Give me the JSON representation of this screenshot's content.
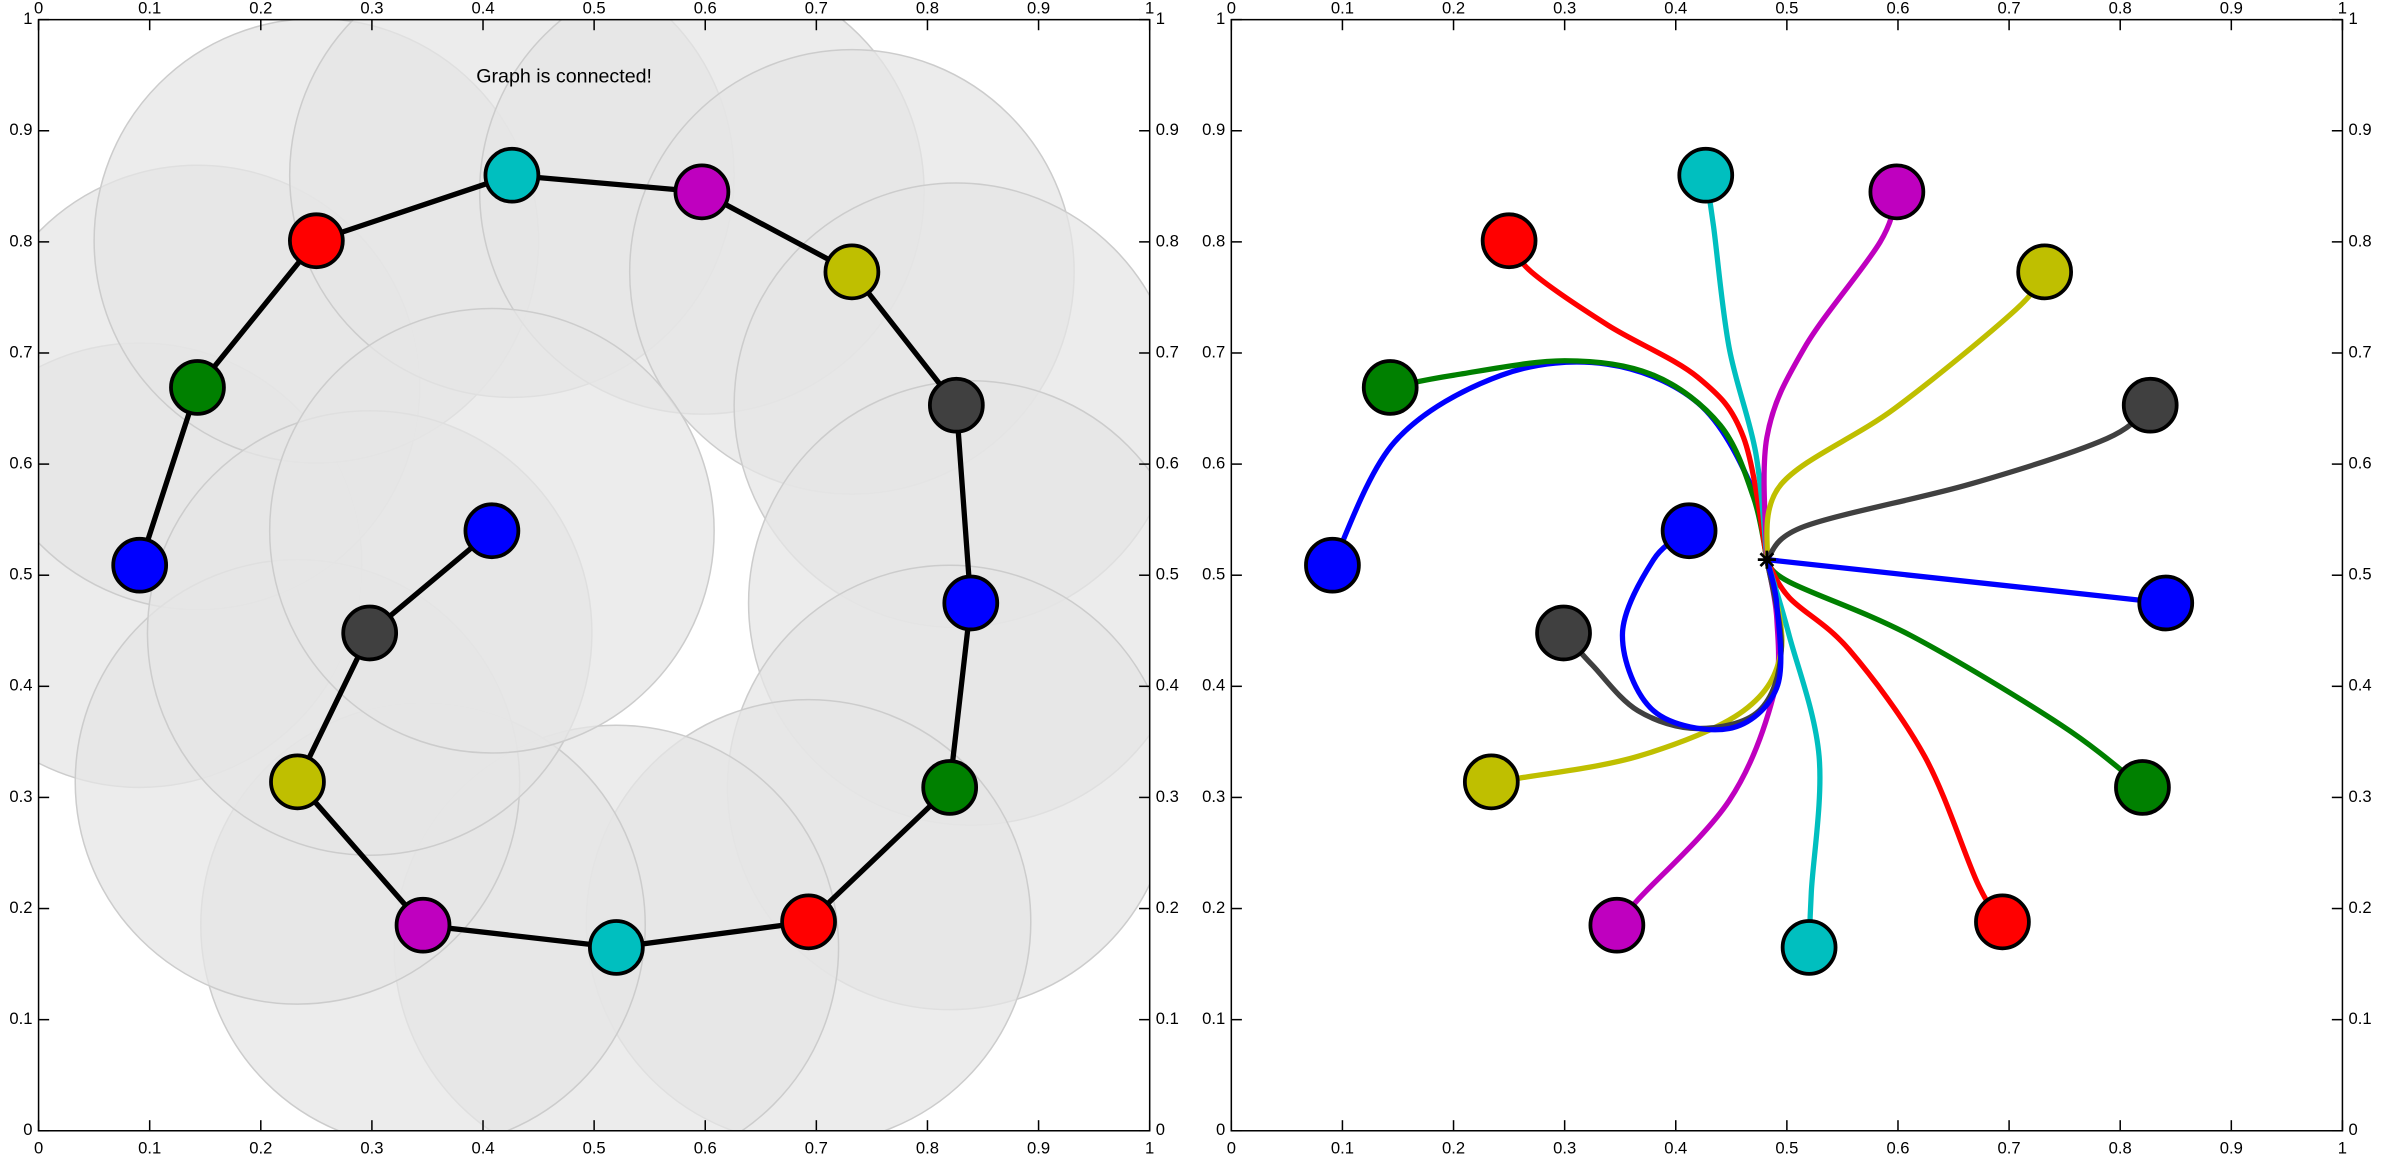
{
  "chart_data": [
    {
      "type": "network",
      "annotation": "Graph is connected!",
      "xlim": [
        0,
        1
      ],
      "ylim": [
        0,
        1
      ],
      "xticks": [
        0,
        0.1,
        0.2,
        0.3,
        0.4,
        0.5,
        0.6,
        0.7,
        0.8,
        0.9,
        1
      ],
      "yticks": [
        0,
        0.1,
        0.2,
        0.3,
        0.4,
        0.5,
        0.6,
        0.7,
        0.8,
        0.9,
        1
      ],
      "range": 0.2,
      "range_color": "#e6e6e6",
      "edge_color": "#000000",
      "x": [
        0.091,
        0.143,
        0.25,
        0.426,
        0.597,
        0.732,
        0.826,
        0.839,
        0.82,
        0.693,
        0.52,
        0.346,
        0.233,
        0.298,
        0.408
      ],
      "y": [
        0.509,
        0.669,
        0.801,
        0.86,
        0.845,
        0.773,
        0.653,
        0.475,
        0.309,
        0.188,
        0.165,
        0.185,
        0.314,
        0.448,
        0.54
      ],
      "colors": [
        "#0000ff",
        "#008000",
        "#ff0000",
        "#00bfbf",
        "#bf00bf",
        "#bfbf00",
        "#404040",
        "#0000ff",
        "#008000",
        "#ff0000",
        "#00bfbf",
        "#bf00bf",
        "#bfbf00",
        "#404040",
        "#0000ff"
      ]
    },
    {
      "type": "trajectories",
      "xlim": [
        0,
        1
      ],
      "ylim": [
        0,
        1
      ],
      "xticks": [
        0,
        0.1,
        0.2,
        0.3,
        0.4,
        0.5,
        0.6,
        0.7,
        0.8,
        0.9,
        1
      ],
      "yticks": [
        0,
        0.1,
        0.2,
        0.3,
        0.4,
        0.5,
        0.6,
        0.7,
        0.8,
        0.9,
        1
      ],
      "target": {
        "x": 0.482,
        "y": 0.514
      },
      "series": [
        {
          "color": "#0000ff",
          "x": [
            0.091,
            0.147,
            0.243,
            0.338,
            0.42,
            0.468,
            0.482
          ],
          "y": [
            0.509,
            0.62,
            0.68,
            0.69,
            0.655,
            0.58,
            0.514
          ]
        },
        {
          "color": "#008000",
          "x": [
            0.143,
            0.2,
            0.3,
            0.38,
            0.44,
            0.47,
            0.482
          ],
          "y": [
            0.669,
            0.68,
            0.693,
            0.68,
            0.635,
            0.57,
            0.514
          ]
        },
        {
          "color": "#ff0000",
          "x": [
            0.25,
            0.27,
            0.339,
            0.42,
            0.461,
            0.482
          ],
          "y": [
            0.801,
            0.773,
            0.725,
            0.678,
            0.624,
            0.514
          ]
        },
        {
          "color": "#00bfbf",
          "x": [
            0.427,
            0.434,
            0.448,
            0.472,
            0.482
          ],
          "y": [
            0.86,
            0.814,
            0.705,
            0.61,
            0.514
          ]
        },
        {
          "color": "#bf00bf",
          "x": [
            0.599,
            0.584,
            0.516,
            0.482,
            0.482
          ],
          "y": [
            0.845,
            0.8,
            0.705,
            0.624,
            0.514
          ]
        },
        {
          "color": "#bfbf00",
          "x": [
            0.732,
            0.706,
            0.597,
            0.495,
            0.482
          ],
          "y": [
            0.773,
            0.739,
            0.65,
            0.582,
            0.514
          ]
        },
        {
          "color": "#404040",
          "x": [
            0.827,
            0.788,
            0.665,
            0.516,
            0.482
          ],
          "y": [
            0.653,
            0.623,
            0.582,
            0.544,
            0.514
          ]
        },
        {
          "color": "#0000ff",
          "x": [
            0.841,
            0.482
          ],
          "y": [
            0.475,
            0.514
          ]
        },
        {
          "color": "#008000",
          "x": [
            0.82,
            0.747,
            0.611,
            0.502,
            0.482
          ],
          "y": [
            0.309,
            0.365,
            0.446,
            0.494,
            0.514
          ]
        },
        {
          "color": "#ff0000",
          "x": [
            0.694,
            0.672,
            0.624,
            0.556,
            0.502,
            0.482
          ],
          "y": [
            0.188,
            0.222,
            0.337,
            0.433,
            0.48,
            0.514
          ]
        },
        {
          "color": "#00bfbf",
          "x": [
            0.52,
            0.522,
            0.529,
            0.502,
            0.482
          ],
          "y": [
            0.165,
            0.215,
            0.337,
            0.446,
            0.514
          ]
        },
        {
          "color": "#bf00bf",
          "x": [
            0.347,
            0.366,
            0.448,
            0.488,
            0.491,
            0.482
          ],
          "y": [
            0.185,
            0.208,
            0.297,
            0.392,
            0.46,
            0.514
          ]
        },
        {
          "color": "#bfbf00",
          "x": [
            0.234,
            0.257,
            0.366,
            0.461,
            0.495,
            0.482
          ],
          "y": [
            0.314,
            0.317,
            0.337,
            0.378,
            0.433,
            0.514
          ]
        },
        {
          "color": "#404040",
          "x": [
            0.299,
            0.325,
            0.366,
            0.42,
            0.475,
            0.495,
            0.482
          ],
          "y": [
            0.448,
            0.419,
            0.378,
            0.362,
            0.378,
            0.433,
            0.514
          ]
        },
        {
          "color": "#0000ff",
          "x": [
            0.412,
            0.38,
            0.352,
            0.38,
            0.448,
            0.491,
            0.491,
            0.482
          ],
          "y": [
            0.54,
            0.514,
            0.446,
            0.378,
            0.362,
            0.399,
            0.473,
            0.514
          ]
        }
      ]
    }
  ]
}
